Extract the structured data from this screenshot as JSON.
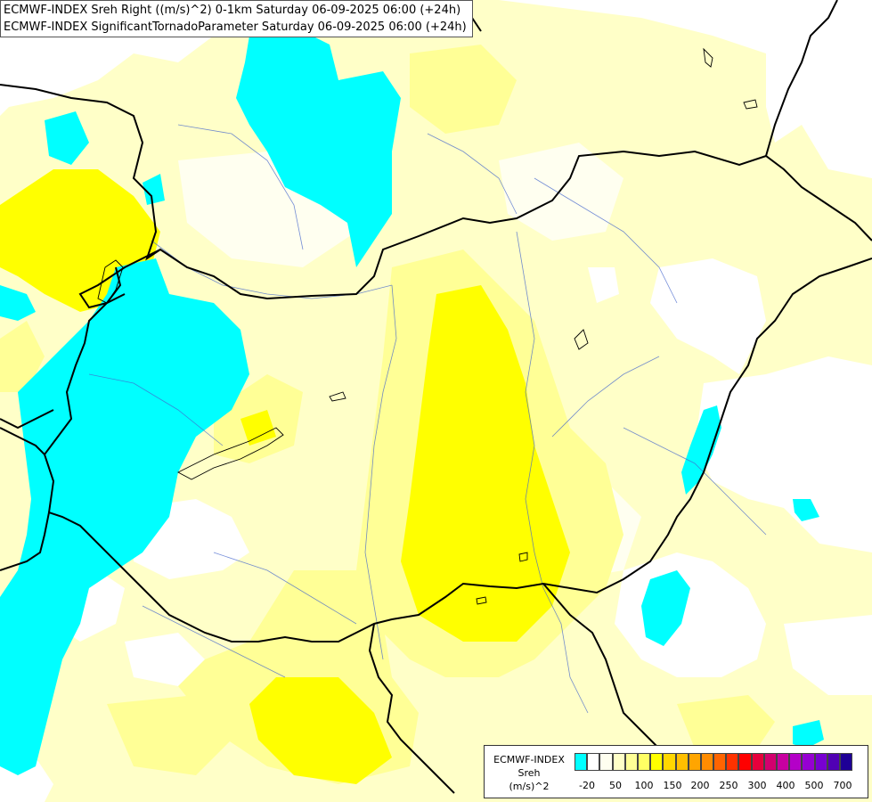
{
  "title": {
    "line1": "ECMWF-INDEX Sreh Right ((m/s)^2) 0-1km Saturday 06-09-2025 06:00 (+24h)",
    "line2": "ECMWF-INDEX SignificantTornadoParameter Saturday 06-09-2025 06:00 (+24h)"
  },
  "legend": {
    "source": "ECMWF-INDEX",
    "variable": "Sreh",
    "unit": "(m/s)^2",
    "colors": [
      "#00ffff",
      "#ffffff",
      "#fffff0",
      "#ffffc8",
      "#ffff96",
      "#ffff64",
      "#ffff00",
      "#ffd700",
      "#ffbf00",
      "#ffa500",
      "#ff8c00",
      "#ff6400",
      "#ff3200",
      "#ff0000",
      "#e6003c",
      "#d2006e",
      "#c800a0",
      "#b400c8",
      "#9600d2",
      "#7800d2",
      "#5000b4",
      "#1e0096"
    ],
    "tick_labels": [
      "-20",
      "50",
      "100",
      "150",
      "200",
      "250",
      "300",
      "400",
      "500",
      "700"
    ]
  }
}
